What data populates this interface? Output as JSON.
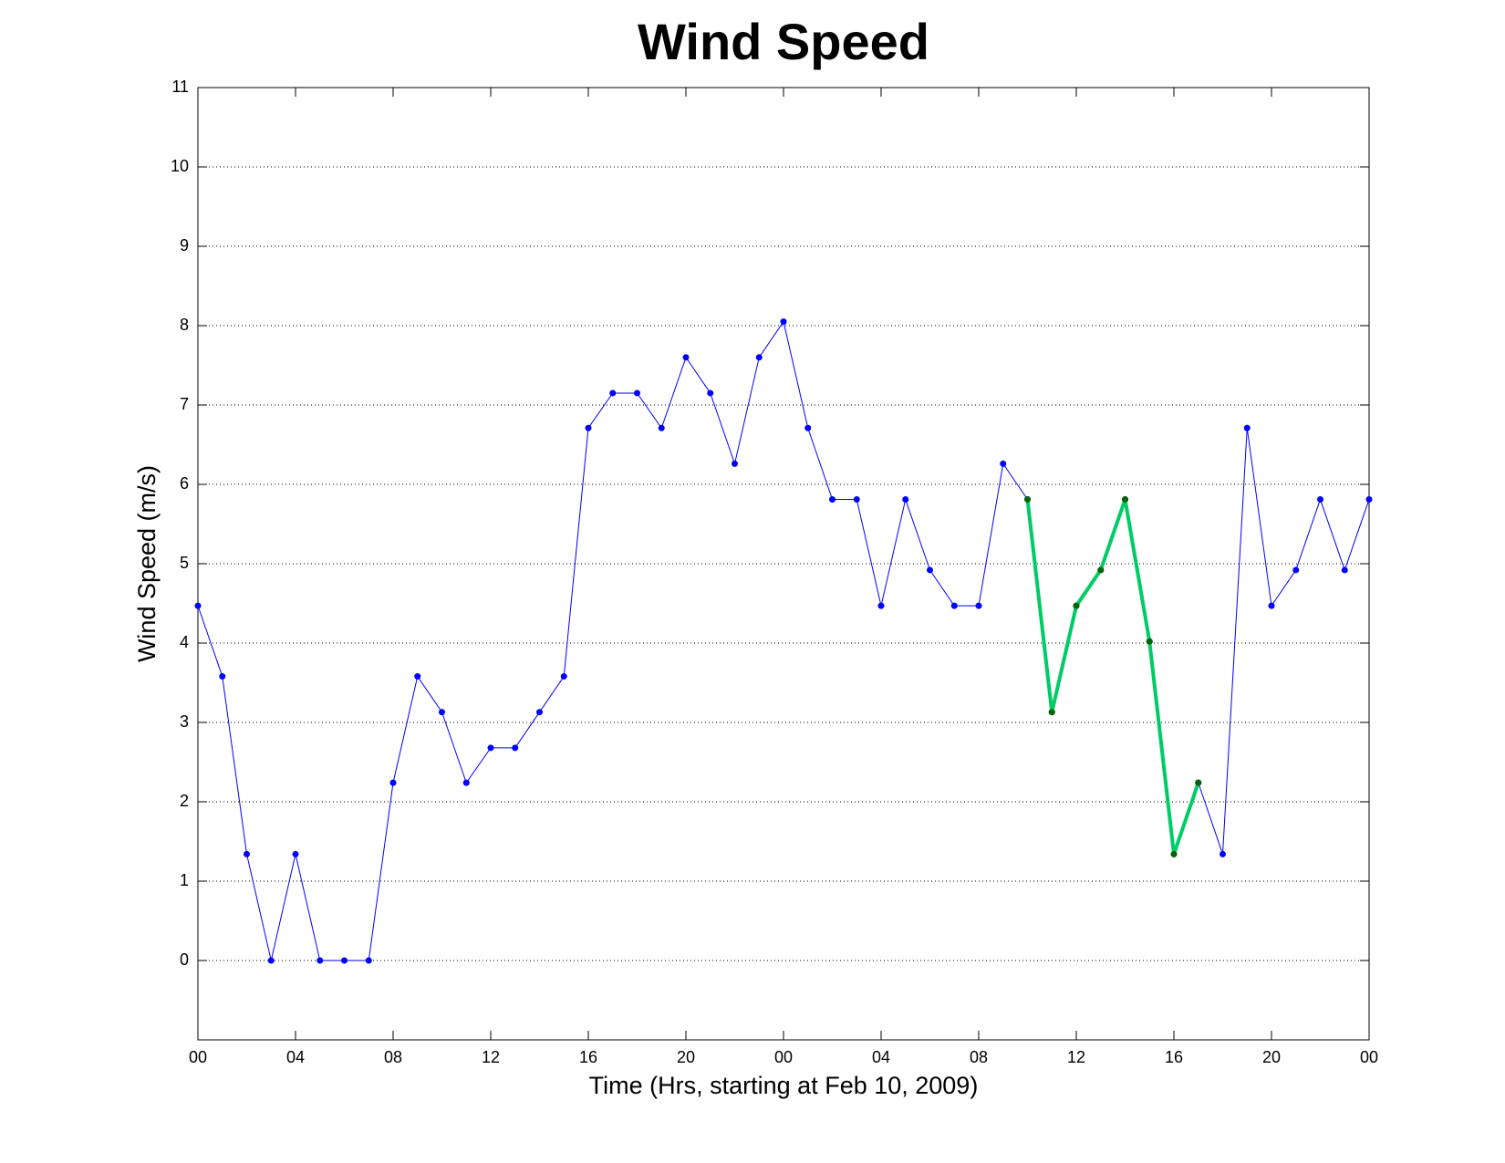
{
  "chart_data": {
    "type": "line",
    "title": "Wind Speed",
    "x_label": "Time (Hrs, starting at Feb 10, 2009)",
    "y_label": "Wind Speed (m/s)",
    "xlim": [
      0,
      48
    ],
    "ylim": [
      -1,
      11
    ],
    "xticks": [
      {
        "value": 0,
        "label": "00"
      },
      {
        "value": 4,
        "label": "04"
      },
      {
        "value": 8,
        "label": "08"
      },
      12,
      16,
      20,
      {
        "value": 24,
        "label": "00"
      },
      {
        "value": 28,
        "label": "04"
      },
      {
        "value": 32,
        "label": "08"
      },
      {
        "value": 36,
        "label": "12"
      },
      {
        "value": 40,
        "label": "16"
      },
      {
        "value": 44,
        "label": "20"
      },
      {
        "value": 48,
        "label": "00"
      }
    ],
    "yticks": [
      0,
      1,
      2,
      3,
      4,
      5,
      6,
      7,
      8,
      9,
      10,
      11
    ],
    "grid": true,
    "series": [
      {
        "color": "#0000ff",
        "marker_color": "#0000ff",
        "width": 1,
        "x": [
          0,
          1,
          2,
          3,
          4,
          5,
          6,
          7,
          8,
          9,
          10,
          11,
          12,
          13,
          14,
          15,
          16,
          17,
          18,
          19,
          20,
          21,
          22,
          23,
          24,
          25,
          26,
          27,
          28,
          29,
          30,
          31,
          32,
          33,
          34,
          35,
          36,
          37,
          38,
          39,
          40,
          41,
          42,
          43,
          44,
          45,
          46,
          47,
          48
        ],
        "values": [
          4.47,
          3.58,
          1.34,
          0,
          1.34,
          0,
          0,
          0,
          2.24,
          3.58,
          3.13,
          2.24,
          2.68,
          2.68,
          3.13,
          3.58,
          6.71,
          7.15,
          7.15,
          6.71,
          7.6,
          7.15,
          6.26,
          7.6,
          8.05,
          6.71,
          5.81,
          5.81,
          4.47,
          5.81,
          4.92,
          4.47,
          4.47,
          6.26,
          5.81,
          3.13,
          4.47,
          4.92,
          5.81,
          4.02,
          1.34,
          2.24,
          1.34,
          6.71,
          4.47,
          4.92,
          5.81,
          4.92,
          5.81
        ]
      },
      {
        "color": "#00cc66",
        "marker_color": "#006600",
        "width": 4,
        "x": [
          34,
          35,
          36,
          37,
          38,
          39,
          40,
          41
        ],
        "values": [
          5.81,
          3.13,
          4.47,
          4.92,
          5.81,
          4.02,
          1.34,
          2.24
        ]
      }
    ]
  }
}
